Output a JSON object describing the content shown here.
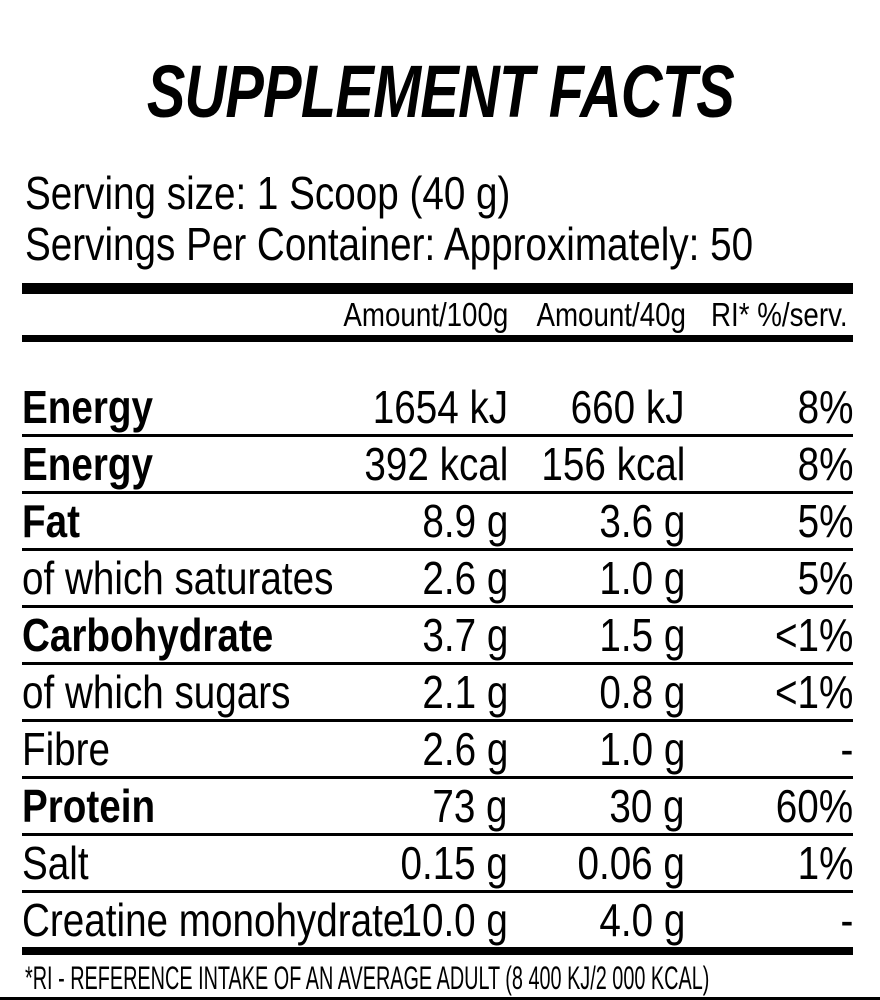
{
  "title": "SUPPLEMENT FACTS",
  "serving": {
    "size_line": "Serving size: 1 Scoop (40 g)",
    "servings_line": "Servings Per Container: Approximately: 50"
  },
  "table": {
    "headers": [
      "Amount/100g",
      "Amount/40g",
      "RI* %/serv."
    ],
    "rows": [
      {
        "label": "Energy",
        "bold": true,
        "per100": "1654 kJ",
        "per40": "660 kJ",
        "ri": "8%"
      },
      {
        "label": "Energy",
        "bold": true,
        "per100": "392 kcal",
        "per40": "156 kcal",
        "ri": "8%"
      },
      {
        "label": "Fat",
        "bold": true,
        "per100": "8.9 g",
        "per40": "3.6 g",
        "ri": "5%"
      },
      {
        "label": "of which saturates",
        "bold": false,
        "per100": "2.6 g",
        "per40": "1.0 g",
        "ri": "5%"
      },
      {
        "label": "Carbohydrate",
        "bold": true,
        "per100": "3.7 g",
        "per40": "1.5 g",
        "ri": "<1%"
      },
      {
        "label": "of which sugars",
        "bold": false,
        "per100": "2.1 g",
        "per40": "0.8 g",
        "ri": "<1%"
      },
      {
        "label": "Fibre",
        "bold": false,
        "per100": "2.6 g",
        "per40": "1.0 g",
        "ri": "-"
      },
      {
        "label": "Protein",
        "bold": true,
        "per100": "73 g",
        "per40": "30 g",
        "ri": "60%"
      },
      {
        "label": "Salt",
        "bold": false,
        "per100": "0.15 g",
        "per40": "0.06 g",
        "ri": "1%"
      },
      {
        "label": "Creatine monohydrate",
        "bold": false,
        "per100": "10.0 g",
        "per40": "4.0 g",
        "ri": "-"
      }
    ]
  },
  "footnote": "*RI - REFERENCE INTAKE OF AN AVERAGE ADULT (8 400 KJ/2 000 KCAL)",
  "colors": {
    "text": "#000000",
    "background": "#ffffff",
    "rule": "#000000"
  }
}
